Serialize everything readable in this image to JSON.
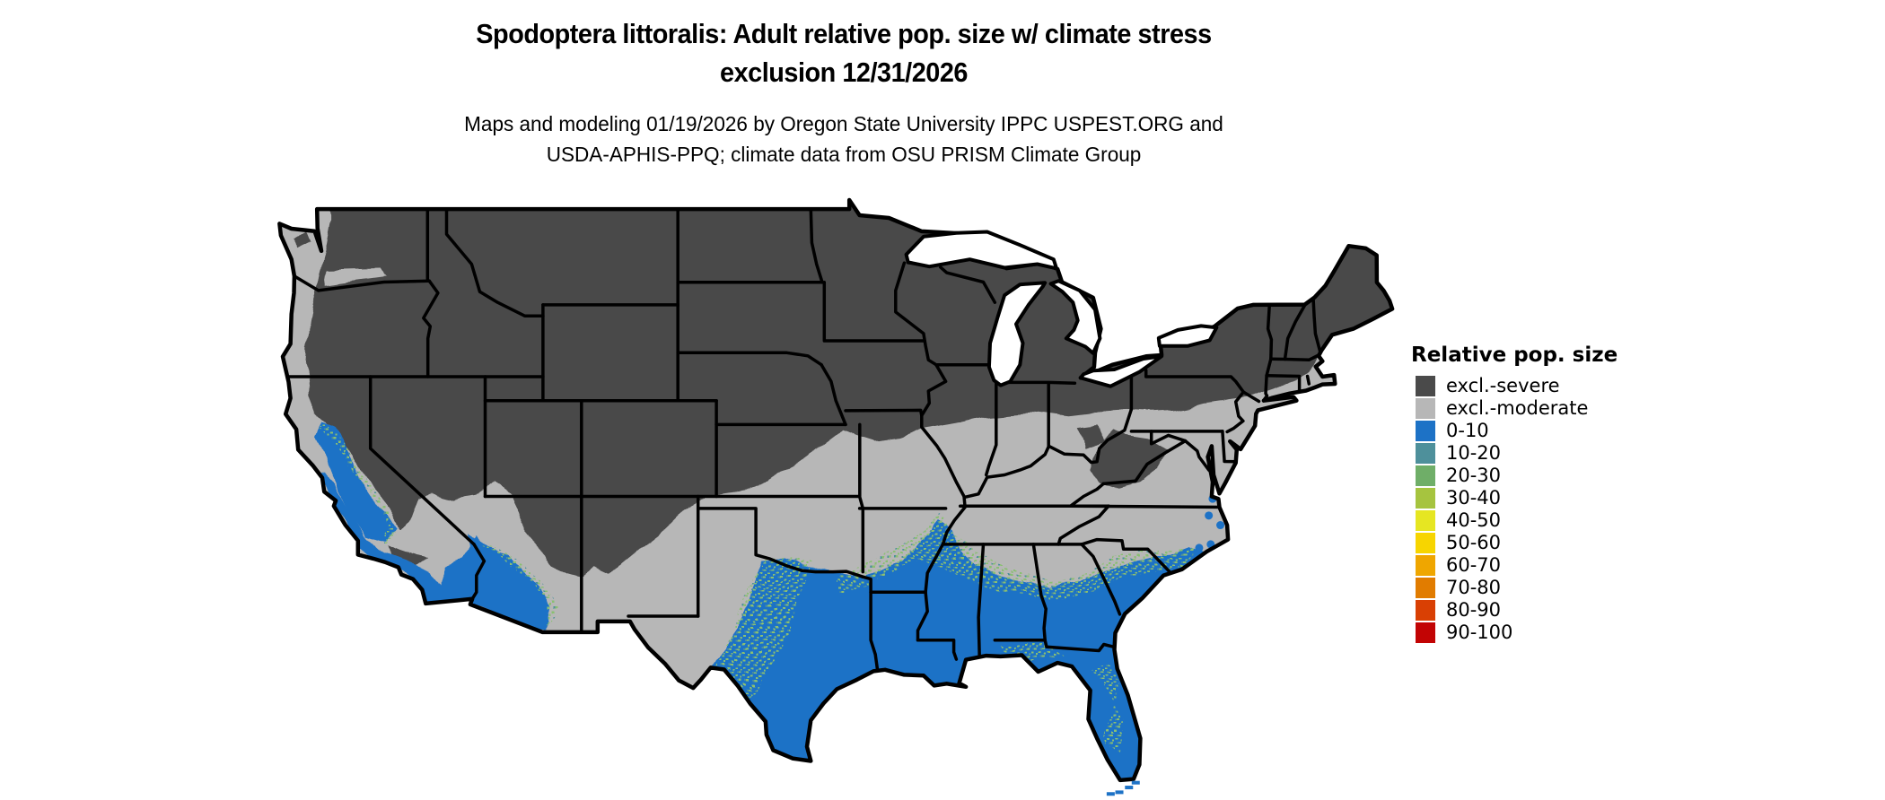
{
  "header": {
    "title_line1": "Spodoptera littoralis: Adult relative pop. size w/ climate stress",
    "title_line2": "exclusion 12/31/2026",
    "subtitle_line1": "Maps and modeling 01/19/2026 by Oregon State University IPPC USPEST.ORG and",
    "subtitle_line2": "USDA-APHIS-PPQ; climate data from OSU PRISM Climate Group"
  },
  "legend": {
    "title": "Relative pop. size",
    "items": [
      {
        "label": "excl.-severe",
        "color": "#4a4a4a"
      },
      {
        "label": "excl.-moderate",
        "color": "#b7b7b7"
      },
      {
        "label": "0-10",
        "color": "#1d72c6"
      },
      {
        "label": "10-20",
        "color": "#4e909b"
      },
      {
        "label": "20-30",
        "color": "#6fae68"
      },
      {
        "label": "30-40",
        "color": "#a6c43f"
      },
      {
        "label": "40-50",
        "color": "#e6e622"
      },
      {
        "label": "50-60",
        "color": "#f7d500"
      },
      {
        "label": "60-70",
        "color": "#efa600"
      },
      {
        "label": "70-80",
        "color": "#e17c00"
      },
      {
        "label": "80-90",
        "color": "#d94004"
      },
      {
        "label": "90-100",
        "color": "#c20404"
      }
    ]
  },
  "map": {
    "background": "#ffffff",
    "water": "#ffffff",
    "border_color": "#000000",
    "speckle_color": "#8abf72"
  }
}
